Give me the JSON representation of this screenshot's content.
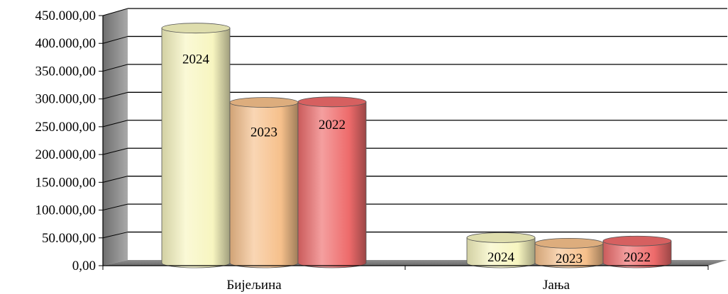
{
  "chart_data": {
    "type": "bar",
    "style": "3d-cylinder",
    "categories": [
      "Бијељина",
      "Јања"
    ],
    "series": [
      {
        "label": "2024",
        "color": "#f7f5c0",
        "values": [
          420000,
          45000
        ]
      },
      {
        "label": "2023",
        "color": "#f6c08b",
        "values": [
          287000,
          35000
        ]
      },
      {
        "label": "2022",
        "color": "#ee6b6b",
        "values": [
          288000,
          39000
        ]
      }
    ],
    "y_ticks": [
      "0,00",
      "50.000,00",
      "100.000,00",
      "150.000,00",
      "200.000,00",
      "250.000,00",
      "300.000,00",
      "350.000,00",
      "400.000,00",
      "450.000,00"
    ],
    "ylim": [
      0,
      450000
    ],
    "grid": true,
    "legend": "none"
  }
}
